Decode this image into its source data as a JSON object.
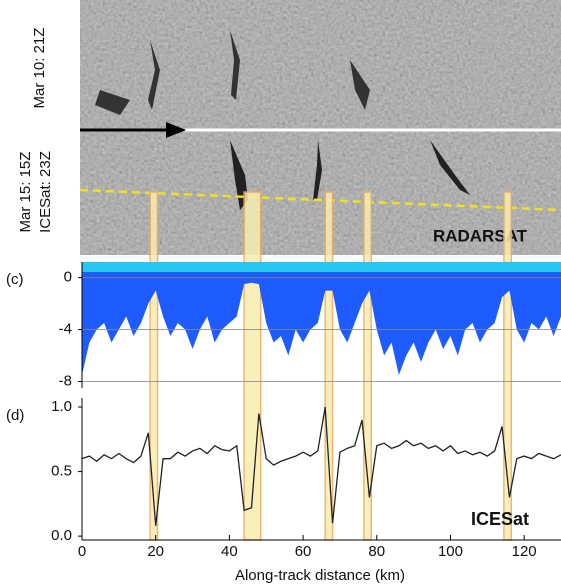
{
  "image": {
    "label_top": "Mar 10: 21Z",
    "label_bottom_1": "Mar 15: 15Z",
    "label_bottom_2": "ICESat: 23Z",
    "sensor": "RADARSAT"
  },
  "chart_data": [
    {
      "type": "area",
      "panel": "(c)",
      "color": "#1f5cff",
      "x": [
        0,
        2,
        4,
        6,
        8,
        10,
        12,
        14,
        16,
        18,
        20,
        22,
        24,
        26,
        28,
        30,
        32,
        34,
        36,
        38,
        40,
        42,
        44,
        46,
        48,
        50,
        52,
        54,
        56,
        58,
        60,
        62,
        64,
        66,
        68,
        70,
        72,
        74,
        76,
        78,
        80,
        82,
        84,
        86,
        88,
        90,
        92,
        94,
        96,
        98,
        100,
        102,
        104,
        106,
        108,
        110,
        112,
        114,
        116,
        118,
        120,
        122,
        124,
        126,
        128,
        130
      ],
      "values": [
        -7.5,
        -5,
        -4,
        -3.5,
        -5,
        -4,
        -3,
        -4.5,
        -3.5,
        -2,
        -1,
        -3,
        -4.5,
        -3.5,
        -4,
        -5.5,
        -4,
        -3,
        -5,
        -4,
        -3.5,
        -3,
        -0.5,
        -0.4,
        -0.5,
        -3.5,
        -5,
        -4.5,
        -6,
        -4,
        -5,
        -4,
        -3.5,
        -1,
        -1,
        -4,
        -5,
        -3.5,
        -2,
        -1,
        -4,
        -6,
        -5,
        -7.5,
        -6,
        -5,
        -6.5,
        -5,
        -4,
        -5.5,
        -4.5,
        -6,
        -4,
        -3.5,
        -5,
        -4,
        -3.5,
        -1.5,
        -1,
        -4,
        -5,
        -3.5,
        -4,
        -3,
        -4.5,
        -3
      ],
      "xlim": [
        0,
        130
      ],
      "ylim": [
        -8.5,
        1.2
      ],
      "yticks": [
        0,
        -4,
        -8
      ],
      "grid": true
    },
    {
      "type": "line",
      "panel": "(d)",
      "color": "#222222",
      "annotation": "ICESat",
      "x": [
        0,
        2,
        4,
        6,
        8,
        10,
        12,
        14,
        16,
        18,
        20,
        22,
        24,
        26,
        28,
        30,
        32,
        34,
        36,
        38,
        40,
        42,
        44,
        46,
        48,
        50,
        52,
        54,
        56,
        58,
        60,
        62,
        64,
        66,
        68,
        70,
        72,
        74,
        76,
        78,
        80,
        82,
        84,
        86,
        88,
        90,
        92,
        94,
        96,
        98,
        100,
        102,
        104,
        106,
        108,
        110,
        112,
        114,
        116,
        118,
        120,
        122,
        124,
        126,
        128,
        130
      ],
      "values": [
        0.6,
        0.62,
        0.58,
        0.63,
        0.6,
        0.64,
        0.6,
        0.57,
        0.62,
        0.8,
        0.08,
        0.6,
        0.6,
        0.65,
        0.62,
        0.66,
        0.68,
        0.64,
        0.7,
        0.67,
        0.66,
        0.7,
        0.2,
        0.22,
        0.95,
        0.6,
        0.55,
        0.58,
        0.6,
        0.62,
        0.65,
        0.62,
        0.66,
        1.0,
        0.1,
        0.65,
        0.68,
        0.7,
        0.9,
        0.3,
        0.7,
        0.72,
        0.68,
        0.7,
        0.74,
        0.7,
        0.72,
        0.68,
        0.7,
        0.66,
        0.7,
        0.64,
        0.66,
        0.63,
        0.65,
        0.62,
        0.66,
        0.85,
        0.3,
        0.6,
        0.62,
        0.6,
        0.64,
        0.62,
        0.6,
        0.63
      ],
      "xlim": [
        0,
        130
      ],
      "ylim": [
        -0.03,
        1.07
      ],
      "yticks": [
        {
          "value": 0,
          "label": "0.0"
        },
        {
          "value": 0.5,
          "label": "0.5"
        },
        {
          "value": 1,
          "label": "1.0"
        }
      ],
      "xticks": [
        0,
        20,
        40,
        60,
        80,
        100,
        120
      ],
      "xlabel": "Along-track distance (km)",
      "highlight_spans": [
        [
          18.5,
          20.5
        ],
        [
          44,
          48.5
        ],
        [
          66,
          68
        ],
        [
          76.5,
          78.5
        ],
        [
          114.5,
          116.5
        ]
      ],
      "highlight_color": "#f7eeb0"
    }
  ]
}
